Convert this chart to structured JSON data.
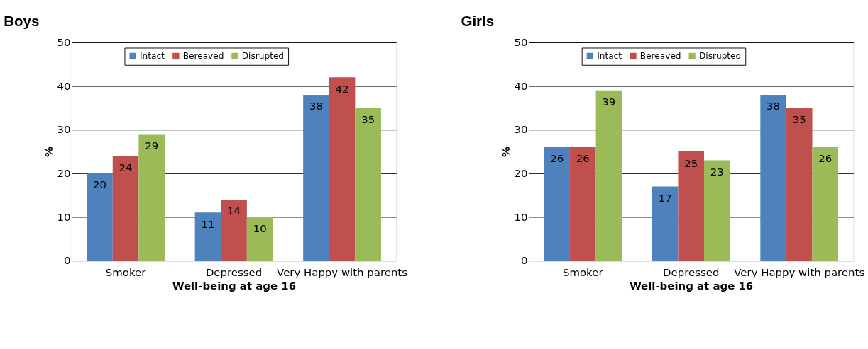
{
  "chart_data": [
    {
      "type": "bar",
      "title": "Boys",
      "xlabel": "Well-being at age 16",
      "ylabel": "%",
      "categories": [
        "Smoker",
        "Depressed",
        "Very Happy with parents"
      ],
      "series": [
        {
          "name": "Intact",
          "color": "#4f81bd",
          "values": [
            20,
            11,
            38
          ]
        },
        {
          "name": "Bereaved",
          "color": "#c0504d",
          "values": [
            24,
            14,
            42
          ]
        },
        {
          "name": "Disrupted",
          "color": "#9bbb59",
          "values": [
            29,
            10,
            35
          ]
        }
      ],
      "ylim": [
        0,
        50
      ],
      "yticks": [
        0,
        10,
        20,
        30,
        40,
        50
      ],
      "grid": "y",
      "legend": "top",
      "data_labels": true
    },
    {
      "type": "bar",
      "title": "Girls",
      "xlabel": "Well-being at age 16",
      "ylabel": "%",
      "categories": [
        "Smoker",
        "Depressed",
        "Very Happy with parents"
      ],
      "series": [
        {
          "name": "Intact",
          "color": "#4f81bd",
          "values": [
            26,
            17,
            38
          ]
        },
        {
          "name": "Bereaved",
          "color": "#c0504d",
          "values": [
            26,
            25,
            35
          ]
        },
        {
          "name": "Disrupted",
          "color": "#9bbb59",
          "values": [
            39,
            23,
            26
          ]
        }
      ],
      "ylim": [
        0,
        50
      ],
      "yticks": [
        0,
        10,
        20,
        30,
        40,
        50
      ],
      "grid": "y",
      "legend": "top",
      "data_labels": true
    }
  ]
}
